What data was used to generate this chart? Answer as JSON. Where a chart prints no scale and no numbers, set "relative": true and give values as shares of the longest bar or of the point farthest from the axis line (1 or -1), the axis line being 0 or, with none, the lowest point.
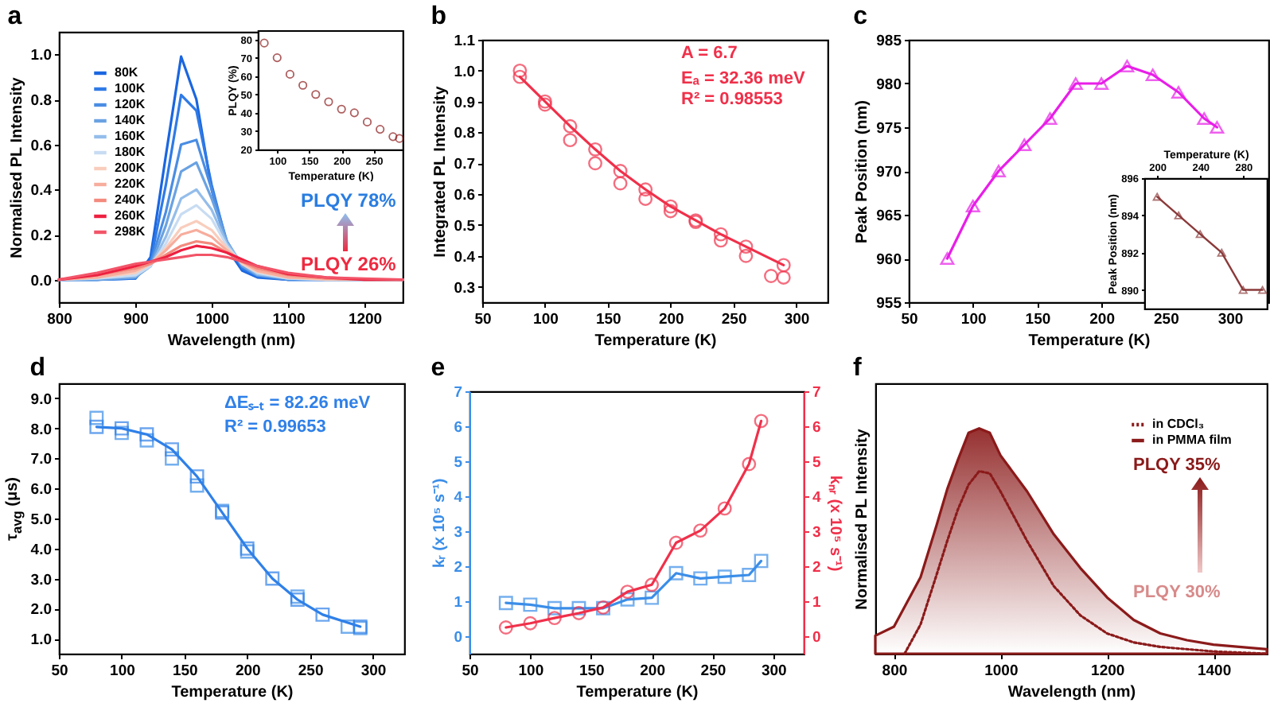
{
  "chart_data": [
    {
      "type": "line",
      "title": "a",
      "xlabel": "Wavelength (nm)",
      "ylabel": "Normalised PL Intensity",
      "xlim": [
        800,
        1250
      ],
      "xticks": [
        800,
        900,
        1000,
        1100,
        1200
      ],
      "ylim": [
        -0.1,
        1.1
      ],
      "yticks": [
        {
          "value": 0,
          "label": "0.0"
        },
        0.2,
        0.4,
        0.6,
        0.8,
        {
          "value": 1,
          "label": "1.0"
        }
      ],
      "legend": "top left",
      "annotations": [
        "PLQY 78%",
        "PLQY 26%"
      ],
      "series": [
        {
          "name": "80K",
          "color": "#1a66e0",
          "x": [
            800,
            850,
            900,
            920,
            940,
            960,
            980,
            1000,
            1020,
            1040,
            1060,
            1100,
            1150,
            1200,
            1250
          ],
          "values": [
            0,
            0,
            0.005,
            0.1,
            0.55,
            0.99,
            0.8,
            0.4,
            0.14,
            0.04,
            0.01,
            0,
            0,
            0,
            0
          ]
        },
        {
          "name": "100K",
          "color": "#2f7ae6",
          "x": [
            800,
            850,
            900,
            920,
            940,
            960,
            980,
            1000,
            1020,
            1040,
            1060,
            1100,
            1150,
            1200,
            1250
          ],
          "values": [
            0,
            0,
            0.005,
            0.08,
            0.42,
            0.82,
            0.75,
            0.42,
            0.16,
            0.05,
            0.015,
            0,
            0,
            0,
            0
          ]
        },
        {
          "name": "120K",
          "color": "#4a8de3",
          "x": [
            800,
            850,
            900,
            920,
            940,
            960,
            980,
            1000,
            1020,
            1040,
            1060,
            1100,
            1150,
            1200,
            1250
          ],
          "values": [
            0,
            0,
            0.01,
            0.07,
            0.3,
            0.6,
            0.62,
            0.4,
            0.17,
            0.06,
            0.02,
            0,
            0,
            0,
            0
          ]
        },
        {
          "name": "140K",
          "color": "#6aa2e2",
          "x": [
            800,
            850,
            900,
            920,
            940,
            960,
            980,
            1000,
            1020,
            1040,
            1060,
            1100,
            1150,
            1200,
            1250
          ],
          "values": [
            0,
            0,
            0.01,
            0.06,
            0.24,
            0.48,
            0.52,
            0.36,
            0.17,
            0.06,
            0.02,
            0.005,
            0,
            0,
            0
          ]
        },
        {
          "name": "160K",
          "color": "#94bdea",
          "x": [
            800,
            850,
            900,
            920,
            940,
            960,
            980,
            1000,
            1020,
            1040,
            1060,
            1100,
            1150,
            1200,
            1250
          ],
          "values": [
            0,
            0.005,
            0.015,
            0.06,
            0.19,
            0.36,
            0.4,
            0.31,
            0.16,
            0.07,
            0.025,
            0.005,
            0,
            0,
            0
          ]
        },
        {
          "name": "180K",
          "color": "#c8dcf2",
          "x": [
            800,
            850,
            900,
            920,
            940,
            960,
            980,
            1000,
            1020,
            1040,
            1060,
            1100,
            1150,
            1200,
            1250
          ],
          "values": [
            0,
            0.005,
            0.02,
            0.06,
            0.16,
            0.29,
            0.33,
            0.27,
            0.15,
            0.07,
            0.03,
            0.005,
            0,
            0,
            0
          ]
        },
        {
          "name": "200K",
          "color": "#f9cdbd",
          "x": [
            800,
            850,
            900,
            920,
            940,
            960,
            980,
            1000,
            1020,
            1040,
            1060,
            1100,
            1150,
            1200,
            1250
          ],
          "values": [
            0,
            0.01,
            0.03,
            0.07,
            0.14,
            0.23,
            0.26,
            0.22,
            0.14,
            0.07,
            0.035,
            0.01,
            0,
            0,
            0
          ]
        },
        {
          "name": "220K",
          "color": "#f7ad9d",
          "x": [
            800,
            850,
            900,
            920,
            940,
            960,
            980,
            1000,
            1020,
            1040,
            1060,
            1100,
            1150,
            1200,
            1250
          ],
          "values": [
            0,
            0.01,
            0.04,
            0.07,
            0.13,
            0.2,
            0.22,
            0.19,
            0.13,
            0.08,
            0.04,
            0.01,
            0.005,
            0,
            0
          ]
        },
        {
          "name": "240K",
          "color": "#f38a7d",
          "x": [
            800,
            850,
            900,
            920,
            940,
            960,
            980,
            1000,
            1020,
            1040,
            1060,
            1100,
            1150,
            1200,
            1250
          ],
          "values": [
            0,
            0.02,
            0.05,
            0.07,
            0.11,
            0.15,
            0.17,
            0.16,
            0.12,
            0.08,
            0.05,
            0.02,
            0.005,
            0,
            0
          ]
        },
        {
          "name": "260K",
          "color": "#ee2040",
          "x": [
            800,
            850,
            900,
            920,
            940,
            960,
            980,
            1000,
            1020,
            1040,
            1060,
            1100,
            1150,
            1200,
            1250
          ],
          "values": [
            0,
            0.02,
            0.06,
            0.08,
            0.1,
            0.13,
            0.15,
            0.14,
            0.12,
            0.09,
            0.06,
            0.025,
            0.01,
            0,
            0
          ]
        },
        {
          "name": "298K",
          "color": "#f25468",
          "x": [
            800,
            850,
            900,
            920,
            940,
            960,
            980,
            1000,
            1020,
            1040,
            1060,
            1100,
            1150,
            1200,
            1250
          ],
          "values": [
            0,
            0.03,
            0.07,
            0.08,
            0.09,
            0.1,
            0.11,
            0.11,
            0.1,
            0.08,
            0.06,
            0.03,
            0.01,
            0.005,
            0
          ]
        }
      ]
    },
    {
      "type": "scatter",
      "xlabel": "Temperature (K)",
      "ylabel": "PLQY (%)",
      "xlim": [
        70,
        295
      ],
      "xticks": [
        100,
        150,
        200,
        250
      ],
      "ylim": [
        20,
        85
      ],
      "yticks": [
        20,
        30,
        40,
        50,
        60,
        70,
        80
      ],
      "marker": "circle",
      "series": [
        {
          "color": "#8b1a1a",
          "x": [
            80,
            100,
            120,
            140,
            160,
            180,
            200,
            220,
            240,
            260,
            280,
            290
          ],
          "values": [
            78,
            70,
            61,
            55,
            50,
            46,
            42,
            40,
            35,
            31,
            27,
            26
          ]
        }
      ]
    },
    {
      "type": "scatter",
      "title": "b",
      "xlabel": "Temperature (K)",
      "ylabel": "Integrated PL Intensity",
      "xlim": [
        50,
        325
      ],
      "xticks": [
        50,
        100,
        150,
        200,
        250,
        300
      ],
      "ylim": [
        0.25,
        1.1
      ],
      "yticks": [
        0.3,
        0.4,
        0.5,
        0.6,
        0.7,
        0.8,
        0.9,
        {
          "value": 1,
          "label": "1.0"
        },
        1.1
      ],
      "marker": "circle",
      "annotations": [
        "A = 6.7",
        "Eₐ = 32.36 meV",
        "R² = 0.98553"
      ],
      "series": [
        {
          "color": "#f0304a",
          "x": [
            80,
            100,
            120,
            140,
            160,
            180,
            200,
            220,
            240,
            260,
            280,
            290
          ],
          "values": [
            1.0,
            0.89,
            0.775,
            0.7,
            0.635,
            0.585,
            0.545,
            0.51,
            0.45,
            0.4,
            0.335,
            0.33
          ]
        },
        {
          "type": "line",
          "color": "#f0304a",
          "x": [
            80,
            100,
            120,
            140,
            160,
            180,
            200,
            220,
            240,
            260,
            290
          ],
          "values": [
            0.98,
            0.9,
            0.82,
            0.745,
            0.675,
            0.615,
            0.56,
            0.515,
            0.47,
            0.43,
            0.37
          ]
        }
      ]
    },
    {
      "type": "line",
      "title": "c",
      "xlabel": "Temperature (K)",
      "ylabel": "Peak Position (nm)",
      "xlim": [
        50,
        330
      ],
      "xticks": [
        50,
        100,
        150,
        200,
        250,
        300
      ],
      "ylim": [
        955,
        985
      ],
      "yticks": [
        955,
        960,
        965,
        970,
        975,
        980,
        985
      ],
      "marker": "triangle",
      "series": [
        {
          "color": "#e81ee8",
          "x": [
            80,
            100,
            120,
            140,
            160,
            180,
            200,
            220,
            240,
            260,
            280,
            290
          ],
          "values": [
            960,
            966,
            970,
            973,
            976,
            980,
            980,
            982,
            981,
            979,
            976,
            975
          ]
        }
      ]
    },
    {
      "type": "line",
      "xlabel": "Temperature (K)",
      "ylabel": "Peak Position (nm)",
      "xlim": [
        188,
        302
      ],
      "xticks": [
        200,
        240,
        280
      ],
      "ylim": [
        889,
        896
      ],
      "yticks": [
        890,
        892,
        894,
        896
      ],
      "marker": "triangle",
      "series": [
        {
          "color": "#8b3a3a",
          "x": [
            200,
            220,
            240,
            260,
            280,
            298
          ],
          "values": [
            895,
            894,
            893,
            892,
            890,
            890
          ]
        }
      ]
    },
    {
      "type": "scatter",
      "title": "d",
      "xlabel": "Temperature (K)",
      "ylabel": "τ$_{avg}$ (μs)",
      "xlim": [
        50,
        325
      ],
      "xticks": [
        50,
        100,
        150,
        200,
        250,
        300
      ],
      "ylim": [
        0.5,
        9.5
      ],
      "yticks": [
        {
          "value": 1,
          "label": "1.0"
        },
        {
          "value": 2,
          "label": "2.0"
        },
        {
          "value": 3,
          "label": "3.0"
        },
        {
          "value": 4,
          "label": "4.0"
        },
        {
          "value": 5,
          "label": "5.0"
        },
        {
          "value": 6,
          "label": "6.0"
        },
        {
          "value": 7,
          "label": "7.0"
        },
        {
          "value": 8,
          "label": "8.0"
        },
        {
          "value": 9,
          "label": "9.0"
        }
      ],
      "marker": "square",
      "annotations": [
        "ΔEₛ₋ₜ = 82.26 meV",
        "R² = 0.99653"
      ],
      "series": [
        {
          "color": "#3b8ee8",
          "x": [
            80,
            100,
            120,
            140,
            160,
            180,
            200,
            240,
            280,
            290
          ],
          "values": [
            8.35,
            7.85,
            7.6,
            7.0,
            6.1,
            5.25,
            3.9,
            2.4,
            1.4,
            1.35
          ]
        },
        {
          "type": "line",
          "color": "#2f80e8",
          "x": [
            80,
            100,
            120,
            140,
            160,
            180,
            200,
            220,
            240,
            260,
            290
          ],
          "values": [
            8.05,
            8.0,
            7.8,
            7.3,
            6.4,
            5.2,
            4.0,
            3.0,
            2.3,
            1.8,
            1.4
          ]
        }
      ]
    },
    {
      "type": "line",
      "title": "e",
      "xlabel": "Temperature (K)",
      "ylabel": "kᵣ (x 10⁵ s⁻¹)",
      "y2label": "kₙᵣ (x 10⁵ s⁻¹)",
      "xlim": [
        50,
        325
      ],
      "xticks": [
        50,
        100,
        150,
        200,
        250,
        300
      ],
      "ylim": [
        -0.5,
        7
      ],
      "yticks": [
        0,
        1,
        2,
        3,
        4,
        5,
        6,
        7
      ],
      "y2lim": [
        -0.5,
        7
      ],
      "y2ticks": [
        0,
        1,
        2,
        3,
        4,
        5,
        6,
        7
      ],
      "series": [
        {
          "color": "#3b8ee8",
          "marker": "square",
          "x": [
            80,
            100,
            120,
            140,
            160,
            180,
            200,
            220,
            240,
            260,
            280,
            290
          ],
          "values": [
            0.95,
            0.9,
            0.8,
            0.8,
            0.8,
            1.05,
            1.1,
            1.8,
            1.65,
            1.7,
            1.75,
            2.15
          ]
        },
        {
          "color": "#f0304a",
          "marker": "circle",
          "axis": "y2",
          "x": [
            80,
            100,
            120,
            140,
            160,
            180,
            200,
            220,
            240,
            260,
            280,
            290
          ],
          "values": [
            0.25,
            0.37,
            0.52,
            0.66,
            0.82,
            1.27,
            1.47,
            2.67,
            3.02,
            3.65,
            4.92,
            6.15
          ]
        }
      ]
    },
    {
      "type": "area",
      "title": "f",
      "xlabel": "Wavelength (nm)",
      "ylabel": "Normalised PL Intensity",
      "relative": true,
      "xlim": [
        765,
        1500
      ],
      "xticks": [
        800,
        1000,
        1200,
        1400
      ],
      "legend": "top right",
      "annotations": [
        "PLQY 35%",
        "PLQY 30%"
      ],
      "series": [
        {
          "name": "in CDCl₃",
          "type": "line",
          "line_style": "dotted",
          "color": "#8b1a1a",
          "x": [
            820,
            850,
            880,
            900,
            920,
            940,
            960,
            980,
            1000,
            1050,
            1100,
            1150,
            1200,
            1250,
            1300,
            1400,
            1500
          ],
          "values": [
            0,
            0.13,
            0.35,
            0.5,
            0.64,
            0.75,
            0.81,
            0.8,
            0.72,
            0.5,
            0.3,
            0.17,
            0.09,
            0.05,
            0.03,
            0.01,
            0
          ]
        },
        {
          "name": "in PMMA film",
          "color": "#8b1a1a",
          "x": [
            765,
            800,
            850,
            880,
            900,
            920,
            940,
            960,
            980,
            1000,
            1050,
            1100,
            1150,
            1200,
            1250,
            1300,
            1350,
            1400,
            1500
          ],
          "values": [
            0.08,
            0.12,
            0.34,
            0.57,
            0.73,
            0.86,
            0.98,
            1,
            0.98,
            0.88,
            0.72,
            0.53,
            0.38,
            0.25,
            0.15,
            0.09,
            0.06,
            0.04,
            0.02
          ]
        }
      ]
    }
  ]
}
